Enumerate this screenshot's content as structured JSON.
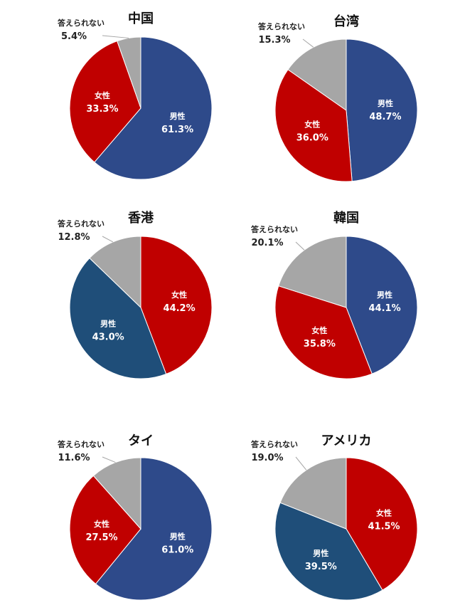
{
  "chart_data": [
    {
      "type": "pie",
      "title": "中国",
      "slices": [
        {
          "label": "男性",
          "value": 61.3,
          "display": "61.3%",
          "color": "#2e4a8a"
        },
        {
          "label": "女性",
          "value": 33.3,
          "display": "33.3%",
          "color": "#c00000"
        },
        {
          "label": "答えられない",
          "value": 5.4,
          "display": "5.4%",
          "color": "#a6a6a6"
        }
      ]
    },
    {
      "type": "pie",
      "title": "台湾",
      "slices": [
        {
          "label": "男性",
          "value": 48.7,
          "display": "48.7%",
          "color": "#2e4a8a"
        },
        {
          "label": "女性",
          "value": 36.0,
          "display": "36.0%",
          "color": "#c00000"
        },
        {
          "label": "答えられない",
          "value": 15.3,
          "display": "15.3%",
          "color": "#a6a6a6"
        }
      ]
    },
    {
      "type": "pie",
      "title": "香港",
      "slices": [
        {
          "label": "女性",
          "value": 44.2,
          "display": "44.2%",
          "color": "#c00000"
        },
        {
          "label": "男性",
          "value": 43.0,
          "display": "43.0%",
          "color": "#1f4e79"
        },
        {
          "label": "答えられない",
          "value": 12.8,
          "display": "12.8%",
          "color": "#a6a6a6"
        }
      ]
    },
    {
      "type": "pie",
      "title": "韓国",
      "slices": [
        {
          "label": "男性",
          "value": 44.1,
          "display": "44.1%",
          "color": "#2e4a8a"
        },
        {
          "label": "女性",
          "value": 35.8,
          "display": "35.8%",
          "color": "#c00000"
        },
        {
          "label": "答えられない",
          "value": 20.1,
          "display": "20.1%",
          "color": "#a6a6a6"
        }
      ]
    },
    {
      "type": "pie",
      "title": "タイ",
      "slices": [
        {
          "label": "男性",
          "value": 61.0,
          "display": "61.0%",
          "color": "#2e4a8a"
        },
        {
          "label": "女性",
          "value": 27.5,
          "display": "27.5%",
          "color": "#c00000"
        },
        {
          "label": "答えられない",
          "value": 11.6,
          "display": "11.6%",
          "color": "#a6a6a6"
        }
      ]
    },
    {
      "type": "pie",
      "title": "アメリカ",
      "slices": [
        {
          "label": "女性",
          "value": 41.5,
          "display": "41.5%",
          "color": "#c00000"
        },
        {
          "label": "男性",
          "value": 39.5,
          "display": "39.5%",
          "color": "#1f4e79"
        },
        {
          "label": "答えられない",
          "value": 19.0,
          "display": "19.0%",
          "color": "#a6a6a6"
        }
      ]
    }
  ]
}
